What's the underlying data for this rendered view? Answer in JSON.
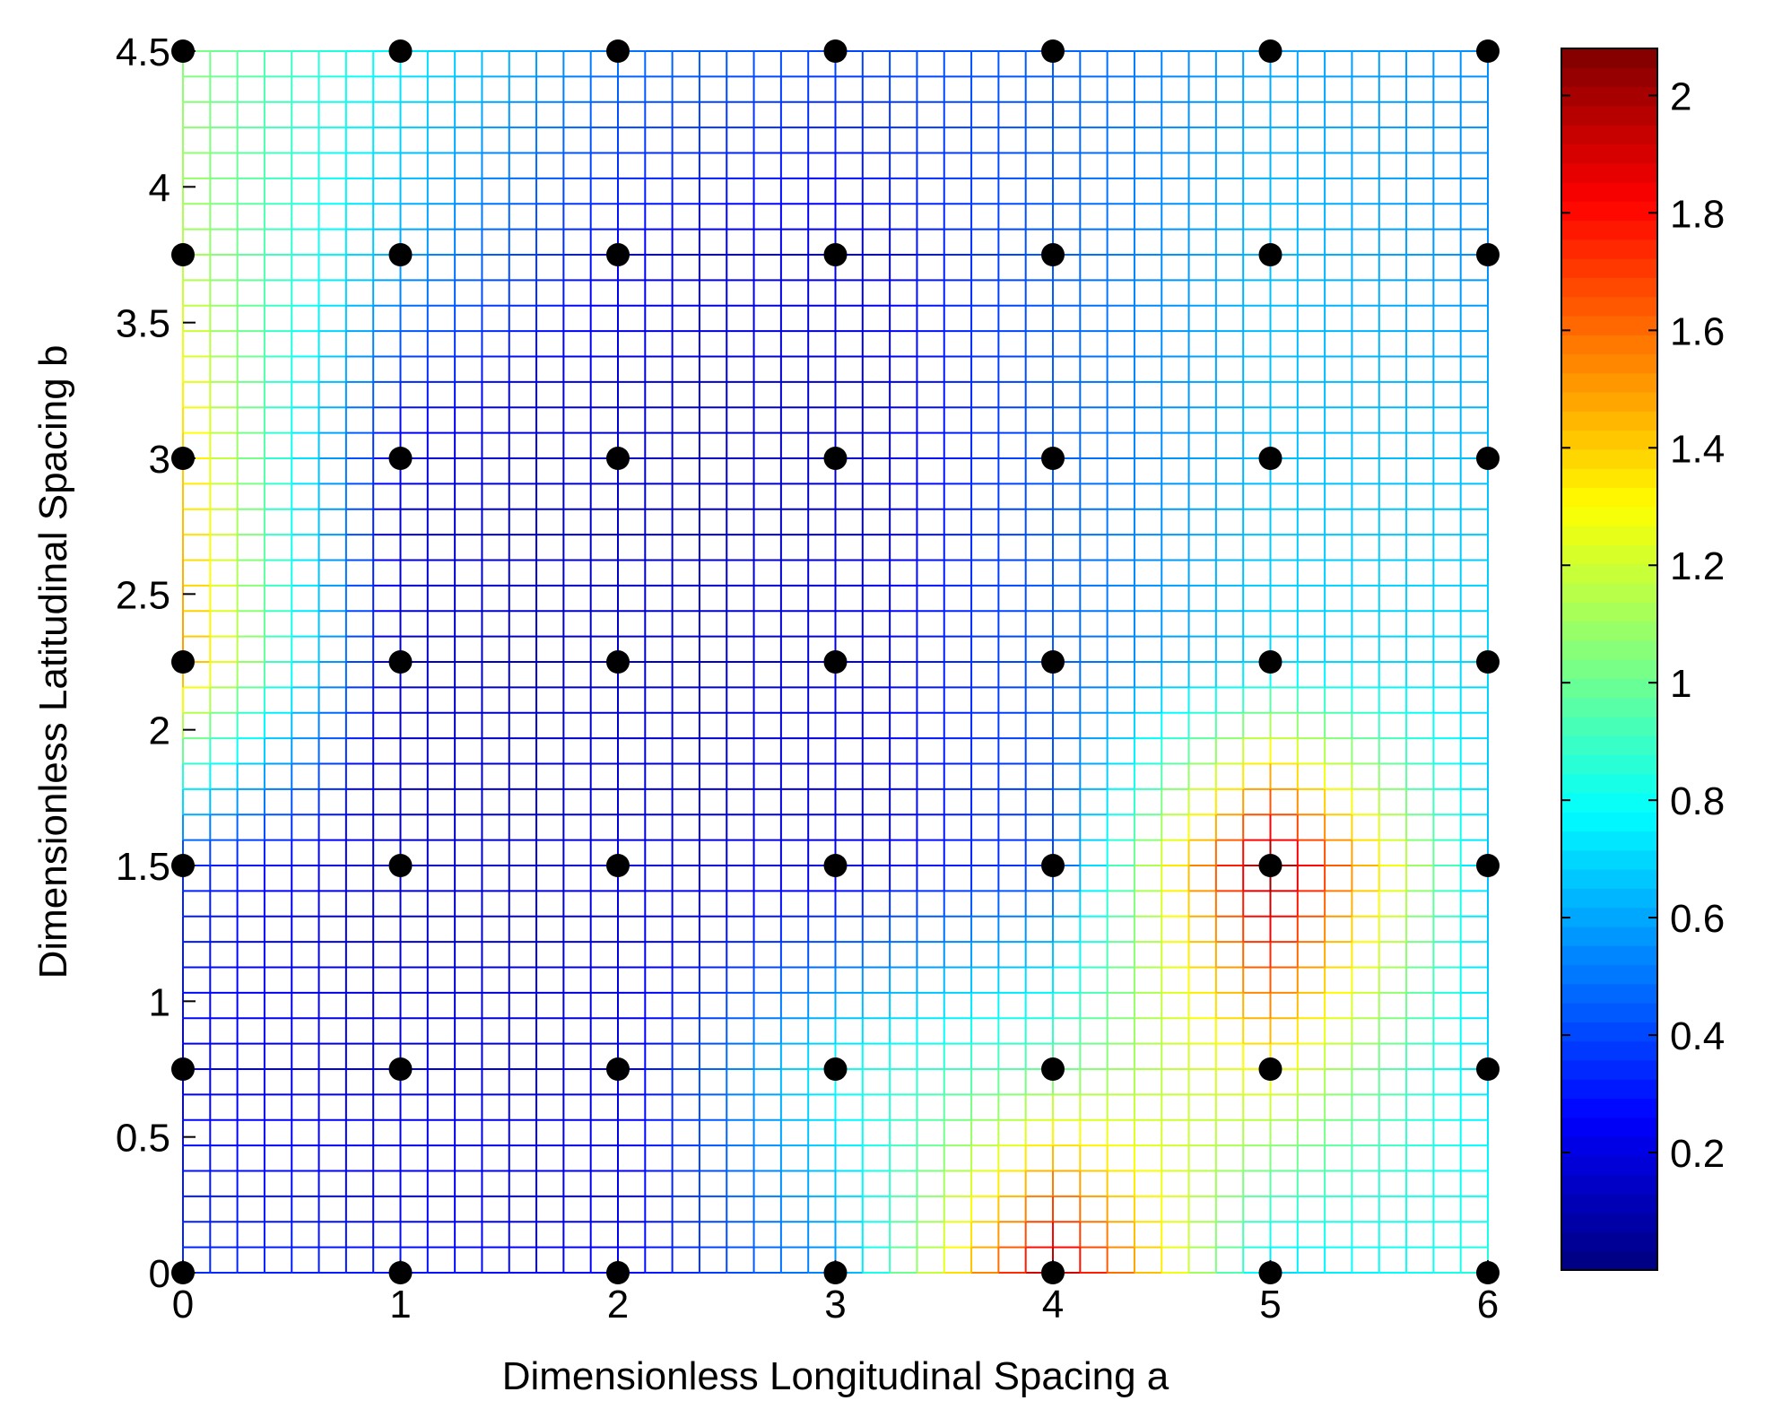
{
  "chart_data": {
    "type": "heatmap",
    "title": "",
    "xlabel": "Dimensionless Longitudinal Spacing a",
    "ylabel": "Dimensionless Latitudinal Spacing b",
    "xlim": [
      0,
      6
    ],
    "ylim": [
      0,
      4.5
    ],
    "x_ticks": [
      0,
      1,
      2,
      3,
      4,
      5,
      6
    ],
    "x_tick_labels": [
      "0",
      "1",
      "2",
      "3",
      "4",
      "5",
      "6"
    ],
    "y_ticks": [
      0,
      0.5,
      1,
      1.5,
      2,
      2.5,
      3,
      3.5,
      4,
      4.5
    ],
    "y_tick_labels": [
      "0",
      "0.5",
      "1",
      "1.5",
      "2",
      "2.5",
      "3",
      "3.5",
      "4",
      "4.5"
    ],
    "colormap": "jet",
    "color_range": [
      0,
      2.08
    ],
    "colorbar_ticks": [
      0.2,
      0.4,
      0.6,
      0.8,
      1,
      1.2,
      1.4,
      1.6,
      1.8,
      2
    ],
    "colorbar_tick_labels": [
      "0.2",
      "0.4",
      "0.6",
      "0.8",
      "1",
      "1.2",
      "1.4",
      "1.6",
      "1.8",
      "2"
    ],
    "grid": true,
    "legend": "none",
    "sample_points": {
      "x": [
        0,
        1,
        2,
        3,
        4,
        5,
        6
      ],
      "y": [
        0,
        0.75,
        1.5,
        2.25,
        3,
        3.75,
        4.5
      ],
      "z": [
        [
          0.35,
          0.3,
          0.25,
          0.55,
          2.0,
          0.7,
          0.85
        ],
        [
          0.25,
          0.2,
          0.2,
          0.8,
          1.0,
          1.3,
          0.7
        ],
        [
          0.35,
          0.15,
          0.2,
          0.2,
          0.4,
          2.08,
          0.65
        ],
        [
          1.5,
          0.15,
          0.15,
          0.2,
          0.45,
          0.7,
          0.7
        ],
        [
          1.4,
          0.2,
          0.15,
          0.15,
          0.45,
          0.65,
          0.65
        ],
        [
          1.15,
          0.6,
          0.25,
          0.2,
          0.45,
          0.65,
          0.55
        ],
        [
          1.05,
          0.75,
          0.5,
          0.4,
          0.45,
          0.6,
          0.55
        ]
      ]
    }
  }
}
